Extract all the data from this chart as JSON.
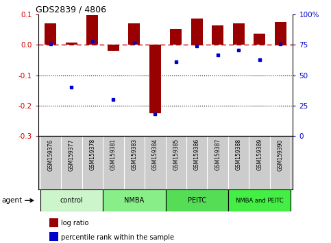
{
  "title": "GDS2839 / 4806",
  "samples": [
    "GSM159376",
    "GSM159377",
    "GSM159378",
    "GSM159381",
    "GSM159383",
    "GSM159384",
    "GSM159385",
    "GSM159386",
    "GSM159387",
    "GSM159388",
    "GSM159389",
    "GSM159390"
  ],
  "log_ratio": [
    0.072,
    0.008,
    0.098,
    -0.02,
    0.072,
    -0.225,
    0.053,
    0.088,
    0.065,
    0.072,
    0.038,
    0.075
  ],
  "percentile_rank": [
    76,
    40,
    78,
    30,
    77,
    18,
    61,
    74,
    67,
    71,
    63,
    76
  ],
  "groups": [
    {
      "label": "control",
      "start": 0,
      "end": 3,
      "color": "#ccf5cc"
    },
    {
      "label": "NMBA",
      "start": 3,
      "end": 6,
      "color": "#88ee88"
    },
    {
      "label": "PEITC",
      "start": 6,
      "end": 9,
      "color": "#55dd55"
    },
    {
      "label": "NMBA and PEITC",
      "start": 9,
      "end": 12,
      "color": "#44ee44"
    }
  ],
  "bar_color": "#990000",
  "dot_color": "#0000cc",
  "dashed_line_color": "#cc0000",
  "left_ylim": [
    -0.3,
    0.1
  ],
  "right_ylim": [
    0,
    100
  ],
  "left_yticks": [
    -0.3,
    -0.2,
    -0.1,
    0.0,
    0.1
  ],
  "right_yticks": [
    0,
    25,
    50,
    75,
    100
  ],
  "right_yticklabels": [
    "0",
    "25",
    "50",
    "75",
    "100%"
  ],
  "header_bg": "#cccccc",
  "bar_width": 0.55
}
